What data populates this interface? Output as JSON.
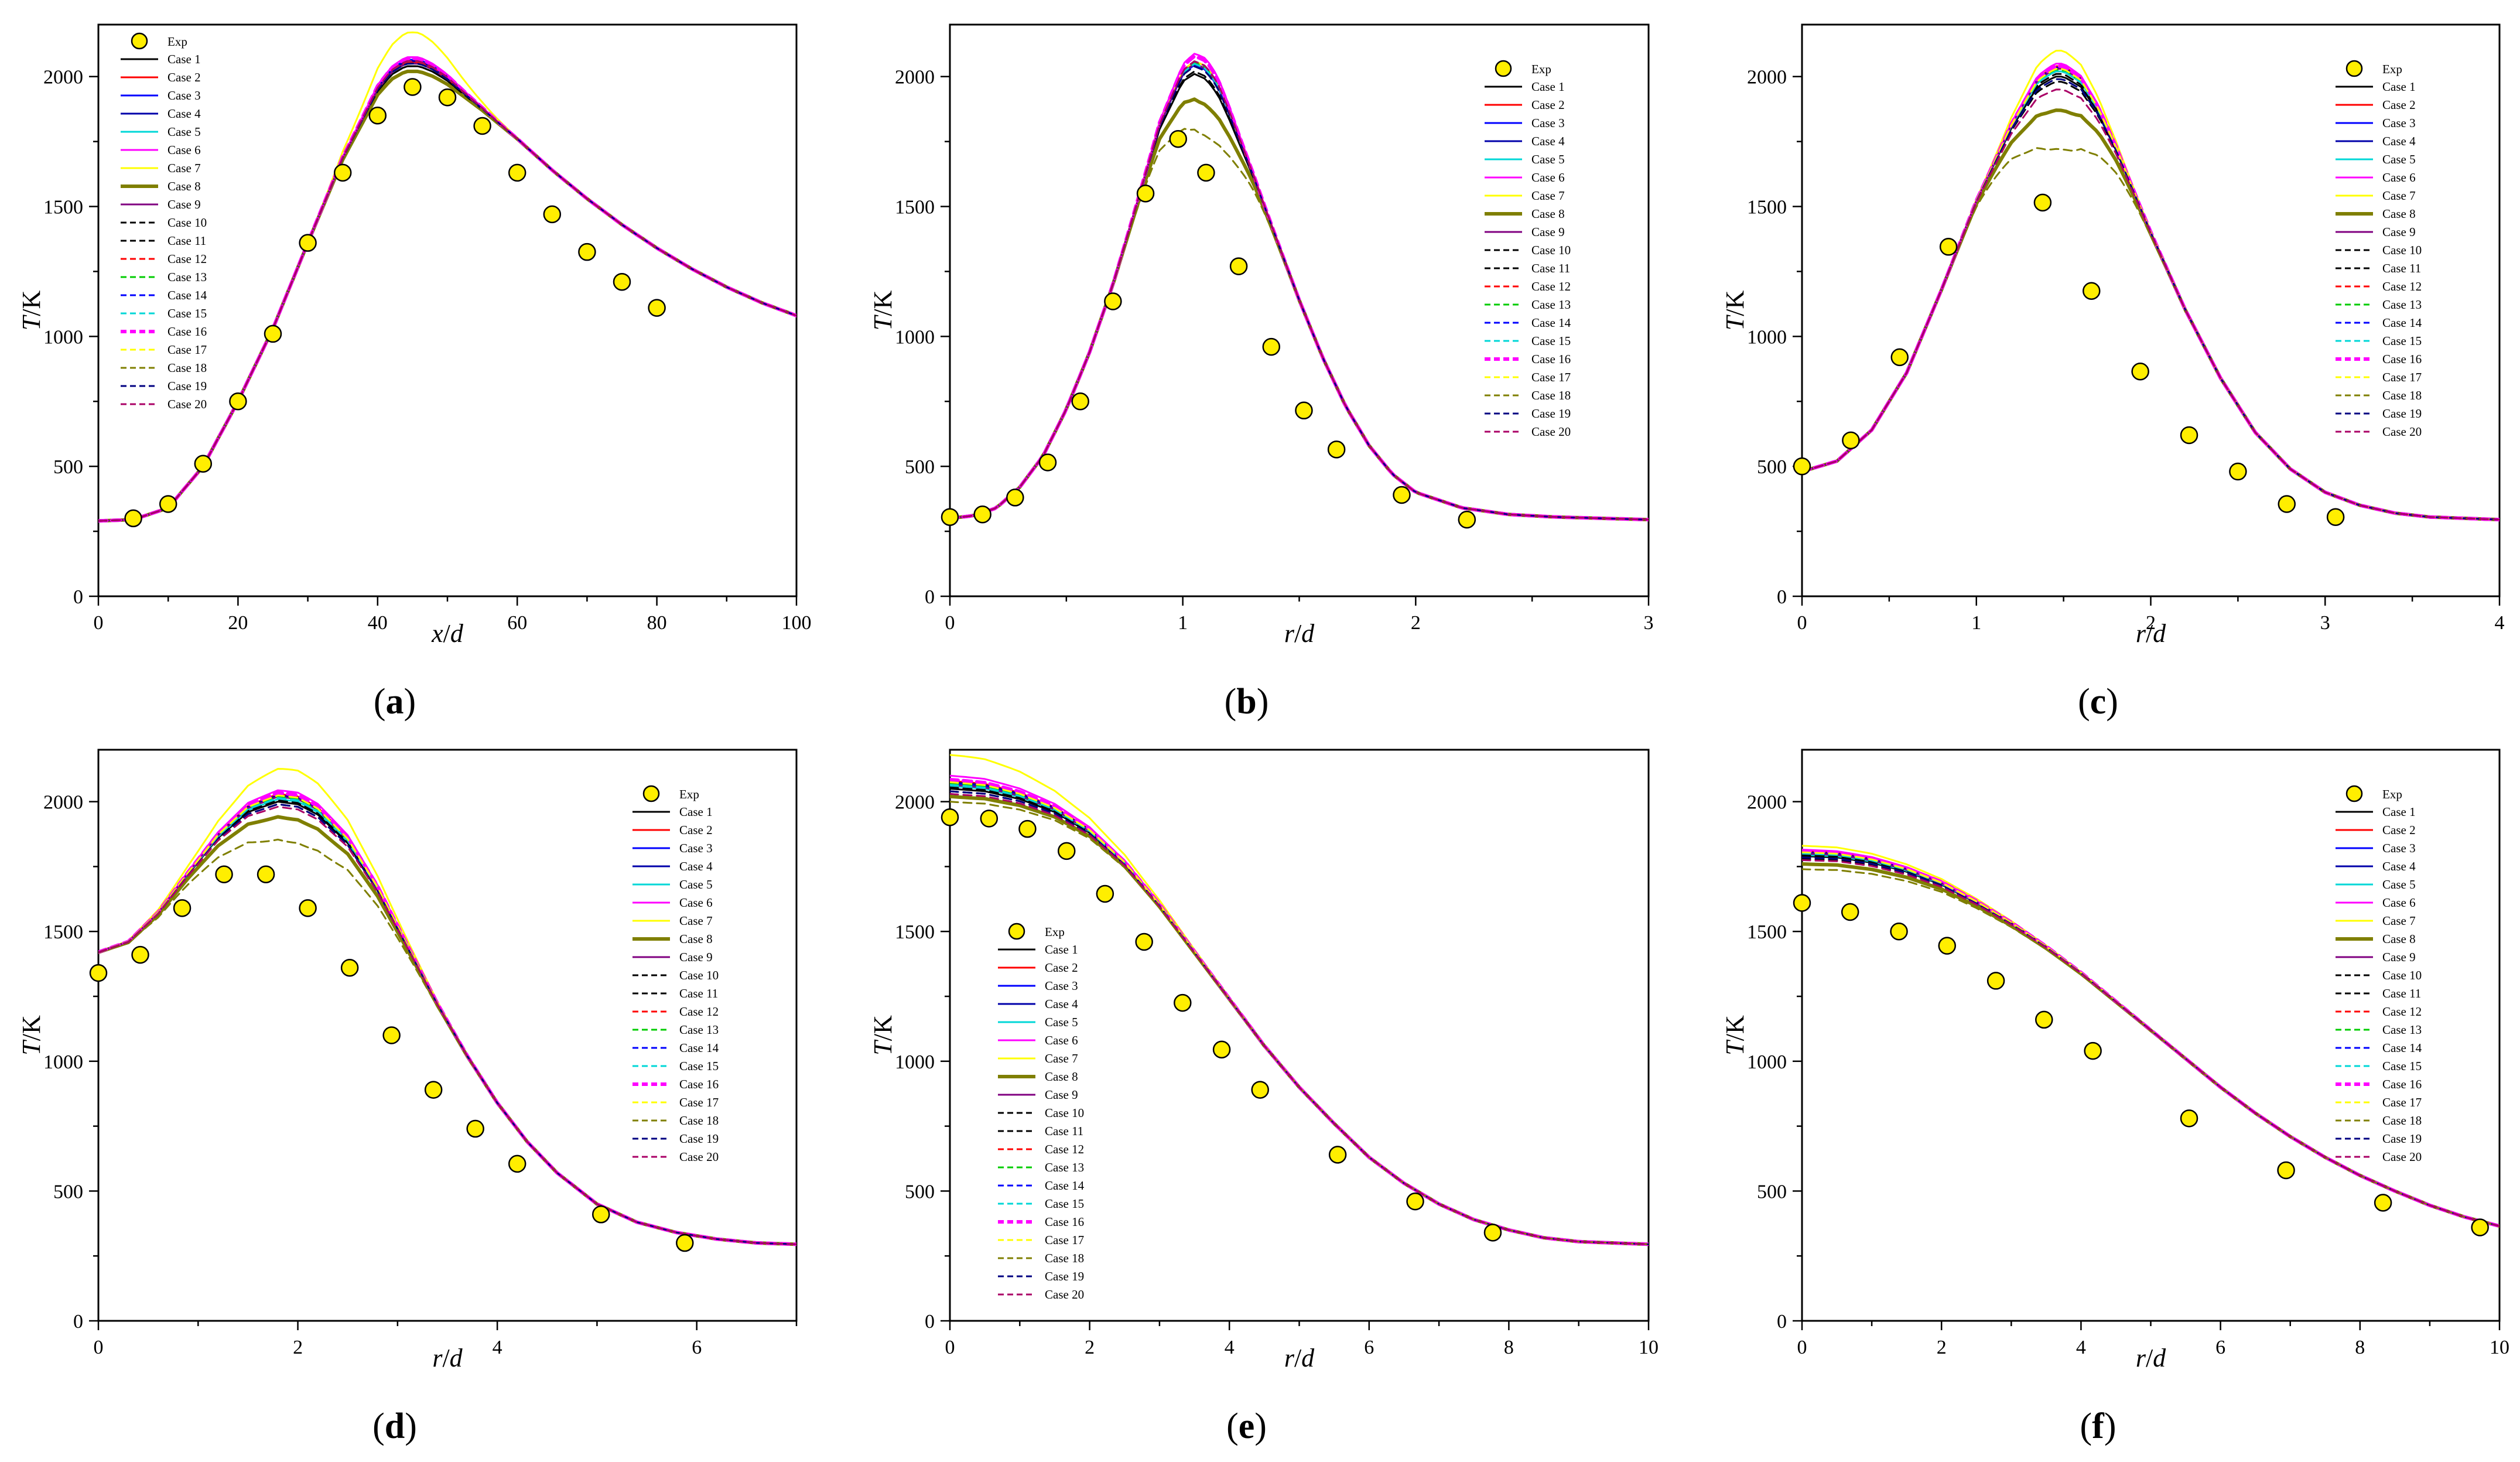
{
  "figure": {
    "y_label_italic": "T",
    "y_label_unit": "/K",
    "legend": {
      "exp_label": "Exp",
      "case_labels": [
        "Case 1",
        "Case 2",
        "Case 3",
        "Case 4",
        "Case 5",
        "Case 6",
        "Case 7",
        "Case 8",
        "Case 9",
        "Case 10",
        "Case 11",
        "Case 12",
        "Case 13",
        "Case 14",
        "Case 15",
        "Case 16",
        "Case 17",
        "Case 18",
        "Case 19",
        "Case 20"
      ]
    },
    "series_styles": [
      {
        "name": "Case 1",
        "color": "#000000",
        "dash": "solid",
        "width": "normal"
      },
      {
        "name": "Case 2",
        "color": "#ff0000",
        "dash": "solid",
        "width": "normal"
      },
      {
        "name": "Case 3",
        "color": "#0000ff",
        "dash": "solid",
        "width": "normal"
      },
      {
        "name": "Case 4",
        "color": "#0000aa",
        "dash": "solid",
        "width": "normal"
      },
      {
        "name": "Case 5",
        "color": "#00d7d7",
        "dash": "solid",
        "width": "normal"
      },
      {
        "name": "Case 6",
        "color": "#ff00ff",
        "dash": "solid",
        "width": "normal"
      },
      {
        "name": "Case 7",
        "color": "#ffff00",
        "dash": "solid",
        "width": "normal"
      },
      {
        "name": "Case 8",
        "color": "#7f7f00",
        "dash": "solid",
        "width": "thick"
      },
      {
        "name": "Case 9",
        "color": "#800080",
        "dash": "solid",
        "width": "normal"
      },
      {
        "name": "Case 10",
        "color": "#000000",
        "dash": "dashed",
        "width": "normal"
      },
      {
        "name": "Case 11",
        "color": "#000000",
        "dash": "dashed",
        "width": "normal"
      },
      {
        "name": "Case 12",
        "color": "#ff0000",
        "dash": "dashed",
        "width": "normal"
      },
      {
        "name": "Case 13",
        "color": "#00cc00",
        "dash": "dashed",
        "width": "normal"
      },
      {
        "name": "Case 14",
        "color": "#0000ff",
        "dash": "dashed",
        "width": "normal"
      },
      {
        "name": "Case 15",
        "color": "#00d7d7",
        "dash": "dashed",
        "width": "normal"
      },
      {
        "name": "Case 16",
        "color": "#ff00ff",
        "dash": "dashed",
        "width": "thick"
      },
      {
        "name": "Case 17",
        "color": "#ffff00",
        "dash": "dashed",
        "width": "normal"
      },
      {
        "name": "Case 18",
        "color": "#7f7f00",
        "dash": "dashed",
        "width": "normal"
      },
      {
        "name": "Case 19",
        "color": "#000080",
        "dash": "dashed",
        "width": "normal"
      },
      {
        "name": "Case 20",
        "color": "#aa0066",
        "dash": "dashed",
        "width": "normal"
      }
    ],
    "exp_marker_color": "#ffee00"
  },
  "chart_data": [
    {
      "type": "line",
      "panel_label": "a",
      "xlabel": "x/d",
      "xlabel_italic": "x",
      "xlabel_sep": "/",
      "xlabel_unit": "d",
      "ylabel": "T/K",
      "xlim": [
        0,
        100
      ],
      "ylim": [
        0,
        2200
      ],
      "xticks": [
        0,
        20,
        40,
        60,
        80,
        100
      ],
      "yticks": [
        0,
        500,
        1000,
        1500,
        2000
      ],
      "legend_position": "top-left",
      "exp": {
        "x": [
          5,
          10,
          15,
          20,
          25,
          30,
          35,
          40,
          45,
          50,
          55,
          60,
          65,
          70,
          75,
          80
        ],
        "y": [
          300,
          355,
          510,
          750,
          1010,
          1360,
          1630,
          1850,
          1960,
          1920,
          1810,
          1630,
          1470,
          1325,
          1210,
          1110
        ]
      },
      "curve": {
        "x": [
          0,
          5,
          10,
          15,
          20,
          25,
          30,
          35,
          40,
          42,
          44,
          46,
          48,
          50,
          55,
          60,
          65,
          70,
          75,
          80,
          85,
          90,
          95,
          100
        ],
        "y": [
          290,
          295,
          340,
          500,
          750,
          1030,
          1360,
          1680,
          1930,
          1990,
          2020,
          2020,
          2000,
          1970,
          1870,
          1760,
          1640,
          1530,
          1430,
          1340,
          1260,
          1190,
          1130,
          1080
        ]
      },
      "peak_x": 45,
      "peak_width": 8,
      "peak_offsets": [
        20,
        35,
        45,
        40,
        30,
        55,
        150,
        0,
        30,
        30,
        20,
        35,
        40,
        45,
        30,
        50,
        40,
        0,
        30,
        40
      ]
    },
    {
      "type": "line",
      "panel_label": "b",
      "xlabel": "r/d",
      "xlabel_italic": "r",
      "xlabel_sep": "/",
      "xlabel_unit": "d",
      "ylabel": "T/K",
      "xlim": [
        0,
        3
      ],
      "ylim": [
        0,
        2200
      ],
      "xticks": [
        0,
        1,
        2,
        3
      ],
      "yticks": [
        0,
        500,
        1000,
        1500,
        2000
      ],
      "legend_position": "top-right",
      "exp": {
        "x": [
          0,
          0.14,
          0.28,
          0.42,
          0.56,
          0.7,
          0.84,
          0.98,
          1.1,
          1.24,
          1.38,
          1.52,
          1.66,
          1.94,
          2.22
        ],
        "y": [
          305,
          315,
          380,
          515,
          750,
          1135,
          1550,
          1760,
          1630,
          1270,
          960,
          715,
          565,
          390,
          295
        ]
      },
      "curve": {
        "x": [
          0,
          0.1,
          0.2,
          0.3,
          0.4,
          0.5,
          0.6,
          0.7,
          0.8,
          0.9,
          1.0,
          1.05,
          1.1,
          1.15,
          1.2,
          1.3,
          1.4,
          1.5,
          1.6,
          1.7,
          1.8,
          1.9,
          2.0,
          2.2,
          2.4,
          2.6,
          2.8,
          3.0
        ],
        "y": [
          300,
          310,
          340,
          420,
          540,
          720,
          940,
          1200,
          1500,
          1800,
          1990,
          2020,
          2000,
          1940,
          1840,
          1620,
          1380,
          1140,
          920,
          730,
          580,
          470,
          400,
          340,
          315,
          305,
          300,
          295
        ]
      },
      "peak_x": 1.08,
      "peak_width": 0.18,
      "peak_offsets": [
        -10,
        40,
        25,
        30,
        30,
        70,
        40,
        -110,
        30,
        0,
        20,
        30,
        35,
        40,
        30,
        60,
        40,
        -230,
        20,
        40
      ]
    },
    {
      "type": "line",
      "panel_label": "c",
      "xlabel": "r/d",
      "xlabel_italic": "r",
      "xlabel_sep": "/",
      "xlabel_unit": "d",
      "ylabel": "T/K",
      "xlim": [
        0,
        4
      ],
      "ylim": [
        0,
        2200
      ],
      "xticks": [
        0,
        1,
        2,
        3,
        4
      ],
      "yticks": [
        0,
        500,
        1000,
        1500,
        2000
      ],
      "legend_position": "top-right",
      "exp": {
        "x": [
          0,
          0.28,
          0.56,
          0.84,
          1.38,
          1.66,
          1.94,
          2.22,
          2.5,
          2.78,
          3.06
        ],
        "y": [
          500,
          600,
          920,
          1345,
          1515,
          1175,
          865,
          620,
          480,
          355,
          305
        ]
      },
      "curve": {
        "x": [
          0,
          0.2,
          0.4,
          0.6,
          0.8,
          1.0,
          1.2,
          1.35,
          1.45,
          1.5,
          1.6,
          1.7,
          1.8,
          2.0,
          2.2,
          2.4,
          2.6,
          2.8,
          3.0,
          3.2,
          3.4,
          3.6,
          3.8,
          4.0
        ],
        "y": [
          480,
          520,
          640,
          860,
          1180,
          1520,
          1800,
          1960,
          2000,
          2000,
          1960,
          1860,
          1720,
          1400,
          1100,
          840,
          630,
          490,
          400,
          350,
          320,
          305,
          300,
          295
        ]
      },
      "peak_x": 1.48,
      "peak_width": 0.3,
      "peak_offsets": [
        0,
        40,
        30,
        35,
        20,
        50,
        100,
        -130,
        30,
        -20,
        10,
        20,
        25,
        30,
        20,
        40,
        30,
        -280,
        -10,
        -50
      ]
    },
    {
      "type": "line",
      "panel_label": "d",
      "xlabel": "r/d",
      "xlabel_italic": "r",
      "xlabel_sep": "/",
      "xlabel_unit": "d",
      "ylabel": "T/K",
      "xlim": [
        0,
        7
      ],
      "ylim": [
        0,
        2200
      ],
      "xticks": [
        0,
        2,
        4,
        6
      ],
      "yticks": [
        0,
        500,
        1000,
        1500,
        2000
      ],
      "legend_position": "top-right",
      "exp": {
        "x": [
          0,
          0.42,
          0.84,
          1.26,
          1.68,
          2.1,
          2.52,
          2.94,
          3.36,
          3.78,
          4.2,
          5.04,
          5.88
        ],
        "y": [
          1340,
          1410,
          1590,
          1720,
          1720,
          1590,
          1360,
          1100,
          890,
          740,
          605,
          410,
          300
        ]
      },
      "curve": {
        "x": [
          0,
          0.3,
          0.6,
          0.9,
          1.2,
          1.5,
          1.8,
          2.0,
          2.2,
          2.5,
          2.8,
          3.1,
          3.4,
          3.7,
          4.0,
          4.3,
          4.6,
          5.0,
          5.4,
          5.8,
          6.2,
          6.6,
          7.0
        ],
        "y": [
          1420,
          1460,
          1570,
          1720,
          1860,
          1960,
          2000,
          1990,
          1950,
          1840,
          1660,
          1440,
          1220,
          1020,
          840,
          690,
          570,
          450,
          380,
          340,
          315,
          300,
          295
        ]
      },
      "peak_x": 1.95,
      "peak_width": 0.9,
      "peak_offsets": [
        0,
        30,
        20,
        25,
        10,
        45,
        130,
        -60,
        20,
        -10,
        5,
        15,
        20,
        25,
        15,
        35,
        25,
        -150,
        -10,
        -20
      ]
    },
    {
      "type": "line",
      "panel_label": "e",
      "xlabel": "r/d",
      "xlabel_italic": "r",
      "xlabel_sep": "/",
      "xlabel_unit": "d",
      "ylabel": "T/K",
      "xlim": [
        0,
        10
      ],
      "ylim": [
        0,
        2200
      ],
      "xticks": [
        0,
        2,
        4,
        6,
        8,
        10
      ],
      "yticks": [
        0,
        500,
        1000,
        1500,
        2000
      ],
      "legend_position": "left",
      "exp": {
        "x": [
          0,
          0.56,
          1.11,
          1.67,
          2.22,
          2.78,
          3.33,
          3.89,
          4.44,
          5.55,
          6.66,
          7.77
        ],
        "y": [
          1940,
          1935,
          1895,
          1810,
          1645,
          1460,
          1225,
          1045,
          890,
          640,
          460,
          340
        ]
      },
      "curve": {
        "x": [
          0,
          0.5,
          1.0,
          1.5,
          2.0,
          2.5,
          3.0,
          3.5,
          4.0,
          4.5,
          5.0,
          5.5,
          6.0,
          6.5,
          7.0,
          7.5,
          8.0,
          8.5,
          9.0,
          9.5,
          10.0
        ],
        "y": [
          2050,
          2040,
          2010,
          1960,
          1880,
          1760,
          1600,
          1420,
          1240,
          1060,
          900,
          760,
          630,
          530,
          450,
          390,
          350,
          320,
          305,
          300,
          295
        ]
      },
      "peak_x": 0,
      "peak_width": 2.2,
      "peak_offsets": [
        0,
        30,
        20,
        25,
        10,
        50,
        130,
        -30,
        15,
        -10,
        5,
        15,
        20,
        25,
        15,
        35,
        25,
        -50,
        -10,
        -20
      ]
    },
    {
      "type": "line",
      "panel_label": "f",
      "xlabel": "r/d",
      "xlabel_italic": "r",
      "xlabel_sep": "/",
      "xlabel_unit": "d",
      "ylabel": "T/K",
      "xlim": [
        0,
        10
      ],
      "ylim": [
        0,
        2200
      ],
      "xticks": [
        0,
        2,
        4,
        6,
        8,
        10
      ],
      "yticks": [
        0,
        500,
        1000,
        1500,
        2000
      ],
      "legend_position": "top-right",
      "exp": {
        "x": [
          0,
          0.69,
          1.39,
          2.08,
          2.78,
          3.47,
          4.17,
          5.55,
          6.94,
          8.33,
          9.72
        ],
        "y": [
          1610,
          1575,
          1500,
          1445,
          1310,
          1160,
          1040,
          780,
          580,
          455,
          360
        ]
      },
      "curve": {
        "x": [
          0,
          0.5,
          1.0,
          1.5,
          2.0,
          2.5,
          3.0,
          3.5,
          4.0,
          4.5,
          5.0,
          5.5,
          6.0,
          6.5,
          7.0,
          7.5,
          8.0,
          8.5,
          9.0,
          9.5,
          10.0
        ],
        "y": [
          1790,
          1785,
          1765,
          1730,
          1680,
          1610,
          1530,
          1440,
          1340,
          1230,
          1120,
          1010,
          900,
          800,
          710,
          630,
          560,
          500,
          445,
          400,
          365
        ]
      },
      "peak_x": 0,
      "peak_width": 2.6,
      "peak_offsets": [
        0,
        20,
        10,
        15,
        5,
        25,
        40,
        -30,
        10,
        -10,
        5,
        10,
        15,
        15,
        10,
        20,
        15,
        -50,
        -5,
        -15
      ]
    }
  ]
}
